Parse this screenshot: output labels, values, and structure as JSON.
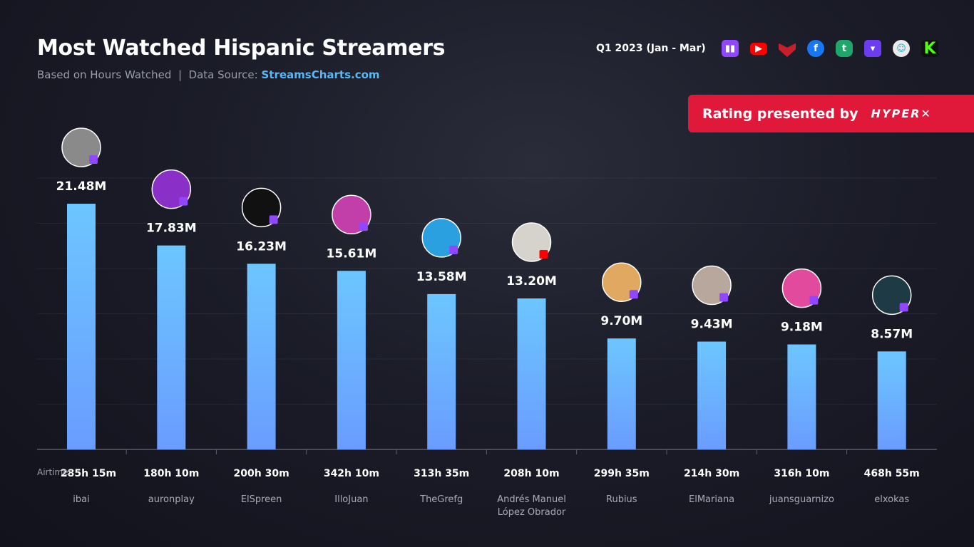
{
  "header": {
    "title": "Most Watched Hispanic Streamers",
    "subtitle_prefix": "Based on Hours Watched  |  Data Source: ",
    "source": "StreamsCharts.com",
    "period": "Q1 2023 (Jan - Mar)",
    "platform_icons": [
      "twitch-icon",
      "youtube-icon",
      "youtube-gaming-icon",
      "facebook-icon",
      "trovo-icon",
      "booyah-icon",
      "bigo-icon",
      "kick-icon"
    ]
  },
  "sponsor": {
    "text": "Rating presented by",
    "logo": "HYPERX"
  },
  "colors": {
    "bar_top": "#6cc6ff",
    "bar_bottom": "#6a9cff",
    "sponsor": "#e0193a",
    "source": "#5ab8f5"
  },
  "chart_data": {
    "type": "bar",
    "categories": [
      "ibai",
      "auronplay",
      "ElSpreen",
      "IlloJuan",
      "TheGrefg",
      "Andrés Manuel López Obrador",
      "Rubius",
      "ElMariana",
      "juansguarnizo",
      "elxokas"
    ],
    "values": [
      21.48,
      17.83,
      16.23,
      15.61,
      13.58,
      13.2,
      9.7,
      9.43,
      9.18,
      8.57
    ],
    "value_labels": [
      "21.48M",
      "17.83M",
      "16.23M",
      "15.61M",
      "13.58M",
      "13.20M",
      "9.70M",
      "9.43M",
      "9.18M",
      "8.57M"
    ],
    "airtime_label": "Airtime:",
    "airtime": [
      "285h 15m",
      "180h 10m",
      "200h 30m",
      "342h 10m",
      "313h 35m",
      "208h 10m",
      "299h 35m",
      "214h 30m",
      "316h 10m",
      "468h 55m"
    ],
    "platforms": [
      "twitch",
      "twitch",
      "twitch",
      "twitch",
      "twitch",
      "youtube",
      "twitch",
      "twitch",
      "twitch",
      "twitch"
    ],
    "ylim": [
      0,
      24
    ],
    "grid": true
  }
}
